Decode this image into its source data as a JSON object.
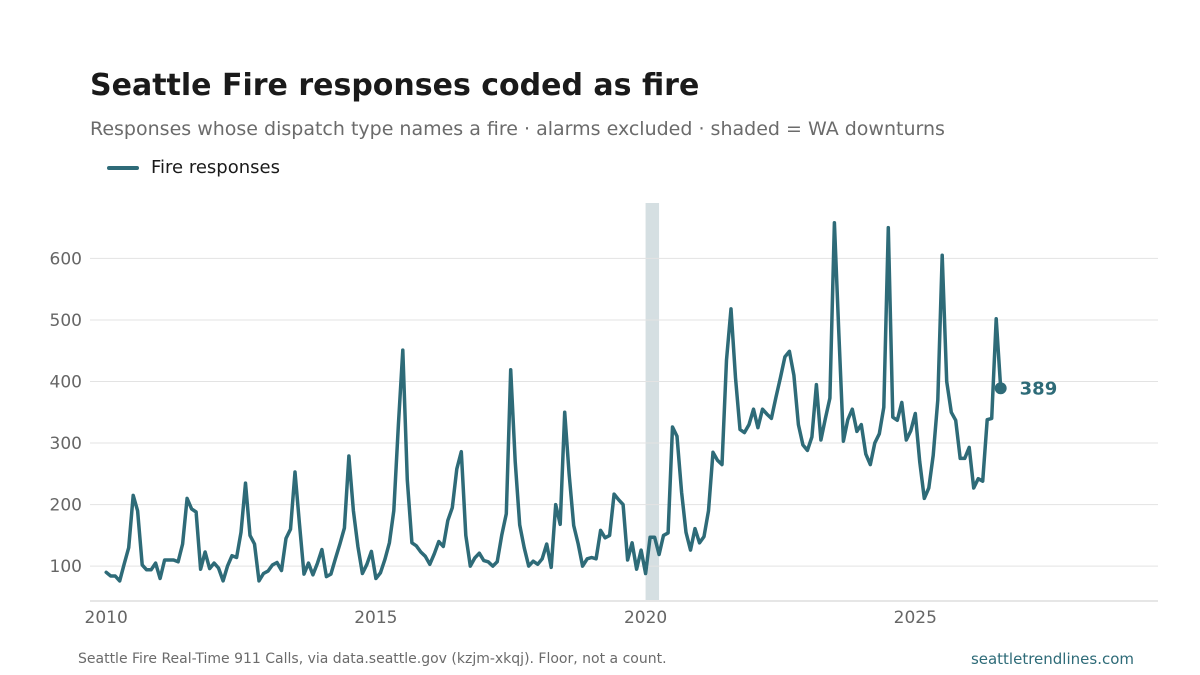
{
  "title": "Seattle Fire responses coded as fire",
  "subtitle": "Responses whose dispatch type names a fire · alarms excluded · shaded = WA downturns",
  "source": "Seattle Fire Real-Time 911 Calls, via data.seattle.gov (kzjm-xkqj). Floor, not a count.",
  "brand": "seattletrendlines.com",
  "colors": {
    "series": "#2e6b78",
    "shade": "#d5dfe2",
    "grid": "#e3e3e3",
    "axis_text": "#666666"
  },
  "chart_data": {
    "type": "line",
    "xlim": [
      2009.7,
      2029.5
    ],
    "ylim": [
      45,
      690
    ],
    "x_ticks": [
      2010,
      2015,
      2020,
      2025
    ],
    "x_tick_labels": [
      "2010",
      "2015",
      "2020",
      "2025"
    ],
    "y_ticks": [
      100,
      200,
      300,
      400,
      500,
      600
    ],
    "y_tick_labels": [
      "100",
      "200",
      "300",
      "400",
      "500",
      "600"
    ],
    "grid": "horizontal",
    "legend": "top-left",
    "shaded_ranges": [
      [
        2020.0,
        2020.25
      ]
    ],
    "end_label": "389",
    "series": [
      {
        "name": "Fire responses",
        "x": [
          2010.0,
          2010.083,
          2010.167,
          2010.25,
          2010.333,
          2010.417,
          2010.5,
          2010.583,
          2010.667,
          2010.75,
          2010.833,
          2010.917,
          2011.0,
          2011.083,
          2011.167,
          2011.25,
          2011.333,
          2011.417,
          2011.5,
          2011.583,
          2011.667,
          2011.75,
          2011.833,
          2011.917,
          2012.0,
          2012.083,
          2012.167,
          2012.25,
          2012.333,
          2012.417,
          2012.5,
          2012.583,
          2012.667,
          2012.75,
          2012.833,
          2012.917,
          2013.0,
          2013.083,
          2013.167,
          2013.25,
          2013.333,
          2013.417,
          2013.5,
          2013.583,
          2013.667,
          2013.75,
          2013.833,
          2013.917,
          2014.0,
          2014.083,
          2014.167,
          2014.25,
          2014.333,
          2014.417,
          2014.5,
          2014.583,
          2014.667,
          2014.75,
          2014.833,
          2014.917,
          2015.0,
          2015.083,
          2015.167,
          2015.25,
          2015.333,
          2015.417,
          2015.5,
          2015.583,
          2015.667,
          2015.75,
          2015.833,
          2015.917,
          2016.0,
          2016.083,
          2016.167,
          2016.25,
          2016.333,
          2016.417,
          2016.5,
          2016.583,
          2016.667,
          2016.75,
          2016.833,
          2016.917,
          2017.0,
          2017.083,
          2017.167,
          2017.25,
          2017.333,
          2017.417,
          2017.5,
          2017.583,
          2017.667,
          2017.75,
          2017.833,
          2017.917,
          2018.0,
          2018.083,
          2018.167,
          2018.25,
          2018.333,
          2018.417,
          2018.5,
          2018.583,
          2018.667,
          2018.75,
          2018.833,
          2018.917,
          2019.0,
          2019.083,
          2019.167,
          2019.25,
          2019.333,
          2019.417,
          2019.5,
          2019.583,
          2019.667,
          2019.75,
          2019.833,
          2019.917,
          2020.0,
          2020.083,
          2020.167,
          2020.25,
          2020.333,
          2020.417,
          2020.5,
          2020.583,
          2020.667,
          2020.75,
          2020.833,
          2020.917,
          2021.0,
          2021.083,
          2021.167,
          2021.25,
          2021.333,
          2021.417,
          2021.5,
          2021.583,
          2021.667,
          2021.75,
          2021.833,
          2021.917,
          2022.0,
          2022.083,
          2022.167,
          2022.25,
          2022.333,
          2022.417,
          2022.5,
          2022.583,
          2022.667,
          2022.75,
          2022.833,
          2022.917,
          2023.0,
          2023.083,
          2023.167,
          2023.25,
          2023.333,
          2023.417,
          2023.5,
          2023.583,
          2023.667,
          2023.75,
          2023.833,
          2023.917,
          2024.0,
          2024.083,
          2024.167,
          2024.25,
          2024.333,
          2024.417,
          2024.5,
          2024.583,
          2024.667,
          2024.75,
          2024.833,
          2024.917,
          2025.0,
          2025.083,
          2025.167,
          2025.25,
          2025.333,
          2025.417,
          2025.5,
          2025.583,
          2025.667,
          2025.75,
          2025.833,
          2025.917,
          2026.0,
          2026.083,
          2026.167,
          2026.25,
          2026.333,
          2026.417,
          2026.5,
          2026.583
        ],
        "values": [
          90,
          84,
          84,
          76,
          103,
          130,
          215,
          190,
          102,
          94,
          94,
          105,
          80,
          110,
          110,
          110,
          107,
          136,
          210,
          193,
          188,
          95,
          123,
          96,
          105,
          97,
          76,
          100,
          117,
          114,
          155,
          235,
          150,
          136,
          76,
          88,
          92,
          102,
          106,
          93,
          145,
          160,
          253,
          170,
          87,
          105,
          86,
          105,
          127,
          83,
          87,
          112,
          136,
          162,
          279,
          190,
          132,
          88,
          103,
          124,
          80,
          89,
          111,
          138,
          190,
          330,
          451,
          240,
          138,
          133,
          123,
          116,
          103,
          120,
          140,
          132,
          174,
          195,
          258,
          286,
          150,
          100,
          113,
          121,
          109,
          107,
          100,
          107,
          150,
          185,
          419,
          270,
          167,
          130,
          100,
          108,
          103,
          112,
          136,
          98,
          200,
          168,
          350,
          250,
          166,
          136,
          100,
          112,
          114,
          112,
          158,
          146,
          150,
          217,
          208,
          200,
          110,
          138,
          95,
          126,
          88,
          147,
          147,
          119,
          150,
          154,
          326,
          311,
          220,
          155,
          126,
          161,
          138,
          148,
          190,
          285,
          272,
          265,
          435,
          518,
          406,
          322,
          317,
          330,
          355,
          325,
          355,
          347,
          340,
          374,
          406,
          440,
          449,
          410,
          330,
          297,
          288,
          310,
          395,
          305,
          340,
          373,
          658,
          480,
          303,
          338,
          355,
          319,
          330,
          282,
          265,
          300,
          315,
          358,
          650,
          342,
          337,
          366,
          305,
          320,
          348,
          270,
          210,
          227,
          280,
          370,
          605,
          400,
          350,
          337,
          275,
          275,
          293,
          227,
          242,
          238,
          338,
          340,
          502,
          389
        ]
      }
    ]
  }
}
